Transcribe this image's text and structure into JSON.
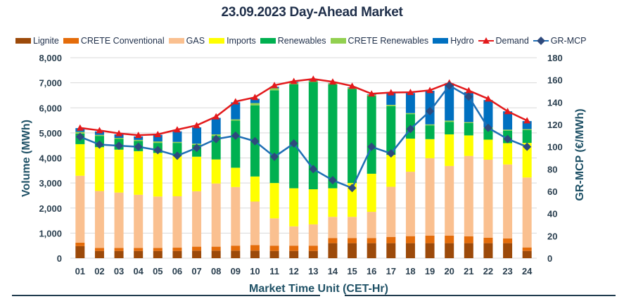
{
  "chart_data": {
    "type": "bar",
    "subtype": "stacked-bar-with-lines",
    "title": "23.09.2023  Day-Ahead Market",
    "xlabel": "Market Time Unit (CET-Hr)",
    "ylabel": "Volume (MWh)",
    "y2label": "GR-MCP (€/MWh)",
    "ylim": [
      0,
      8000
    ],
    "y2lim": [
      0,
      180
    ],
    "yticks": [
      "0",
      "1,000",
      "2,000",
      "3,000",
      "4,000",
      "5,000",
      "6,000",
      "7,000",
      "8,000"
    ],
    "y2ticks": [
      "0",
      "20",
      "40",
      "60",
      "80",
      "100",
      "120",
      "140",
      "160",
      "180"
    ],
    "grid": true,
    "legend_position": "top",
    "categories": [
      "01",
      "02",
      "03",
      "04",
      "05",
      "06",
      "07",
      "08",
      "09",
      "10",
      "11",
      "12",
      "13",
      "14",
      "15",
      "16",
      "17",
      "18",
      "19",
      "20",
      "21",
      "22",
      "23",
      "24"
    ],
    "series": [
      {
        "name": "Lignite",
        "kind": "bar",
        "color": "#9c4a0a",
        "values": [
          480,
          290,
          290,
          290,
          290,
          290,
          300,
          300,
          300,
          300,
          290,
          290,
          290,
          600,
          600,
          600,
          600,
          600,
          600,
          600,
          600,
          600,
          600,
          290
        ]
      },
      {
        "name": "CRETE Conventional",
        "kind": "bar",
        "color": "#e46c0a",
        "values": [
          140,
          120,
          120,
          120,
          120,
          130,
          160,
          160,
          200,
          225,
          210,
          210,
          210,
          205,
          205,
          205,
          250,
          280,
          300,
          300,
          270,
          220,
          190,
          140
        ]
      },
      {
        "name": "GAS",
        "kind": "bar",
        "color": "#fac090",
        "values": [
          2670,
          2270,
          2210,
          2120,
          2050,
          2050,
          2210,
          2520,
          2340,
          1735,
          1090,
          770,
          850,
          845,
          845,
          1045,
          2000,
          2570,
          3090,
          2780,
          3210,
          3110,
          2950,
          2790
        ]
      },
      {
        "name": "Imports",
        "kind": "bar",
        "color": "#ffff00",
        "values": [
          1260,
          1750,
          1710,
          1740,
          1740,
          1610,
          1380,
          960,
          770,
          1000,
          1410,
          1520,
          1400,
          1140,
          1350,
          1520,
          1270,
          1320,
          760,
          1260,
          820,
          800,
          850,
          1380
        ]
      },
      {
        "name": "Renewables",
        "kind": "bar",
        "color": "#00b050",
        "values": [
          420,
          450,
          430,
          410,
          400,
          520,
          470,
          940,
          1880,
          2840,
          3700,
          4150,
          4280,
          4150,
          3750,
          3100,
          1950,
          980,
          550,
          500,
          490,
          460,
          500,
          510
        ]
      },
      {
        "name": "CRETE Renewables",
        "kind": "bar",
        "color": "#92d050",
        "values": [
          70,
          40,
          40,
          40,
          60,
          40,
          50,
          60,
          50,
          90,
          80,
          60,
          50,
          40,
          50,
          50,
          50,
          40,
          40,
          50,
          40,
          30,
          40,
          40
        ]
      },
      {
        "name": "Hydro",
        "kind": "bar",
        "color": "#0070c0",
        "values": [
          150,
          140,
          140,
          140,
          260,
          420,
          650,
          660,
          680,
          170,
          60,
          30,
          30,
          10,
          20,
          20,
          470,
          800,
          1340,
          1490,
          1200,
          1090,
          730,
          320
        ]
      },
      {
        "name": "Demand",
        "kind": "line",
        "axis": "left",
        "color": "#e31a1c",
        "marker": "triangle",
        "values": [
          5200,
          5100,
          4980,
          4910,
          4940,
          5130,
          5300,
          5650,
          6250,
          6420,
          6900,
          7060,
          7150,
          7040,
          6870,
          6560,
          6610,
          6620,
          6700,
          7000,
          6690,
          6360,
          5860,
          5490
        ]
      },
      {
        "name": "GR-MCP",
        "kind": "line",
        "axis": "right",
        "color": "#1f6fb5",
        "marker": "diamond",
        "marker_color": "#2e4a7d",
        "values": [
          109,
          102,
          101,
          100,
          97,
          92,
          99,
          107,
          110,
          105,
          91,
          103,
          80,
          70,
          63,
          100,
          94,
          116,
          132,
          155,
          145,
          117,
          107,
          100
        ]
      }
    ]
  }
}
